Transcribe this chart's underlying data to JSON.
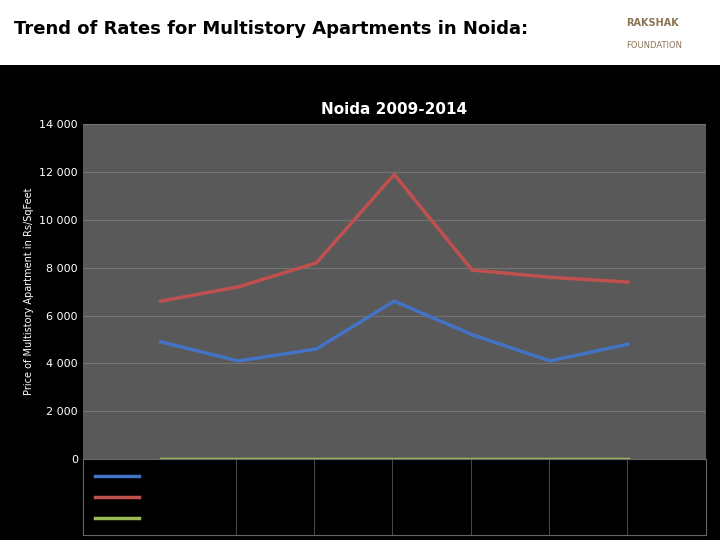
{
  "title": "Trend of Rates for Multistory Apartments in Noida:",
  "chart_title": "Noida 2009-2014",
  "ylabel": "Price of Multistory Apartment in Rs/SqFeet",
  "xlim": [
    0,
    8
  ],
  "ylim": [
    0,
    14000
  ],
  "yticks": [
    0,
    2000,
    4000,
    6000,
    8000,
    10000,
    12000,
    14000
  ],
  "x_values": [
    1,
    2,
    3,
    4,
    5,
    6,
    7
  ],
  "blue_line": [
    4900,
    4100,
    4600,
    6600,
    5200,
    4100,
    4800
  ],
  "red_line": [
    6600,
    7200,
    8200,
    11900,
    7900,
    7600,
    7400
  ],
  "green_line": [
    0,
    0,
    0,
    0,
    0,
    0,
    0
  ],
  "blue_color": "#4472C4",
  "red_color": "#C0504D",
  "green_color": "#9BBB59",
  "plot_bg_color": "#595959",
  "outer_bg_color": "#000000",
  "chart_title_bg_color": "#000000",
  "grid_color": "#808080",
  "text_color": "#FFFFFF",
  "tick_color": "#FFFFFF",
  "legend_bg_color": "#000000"
}
